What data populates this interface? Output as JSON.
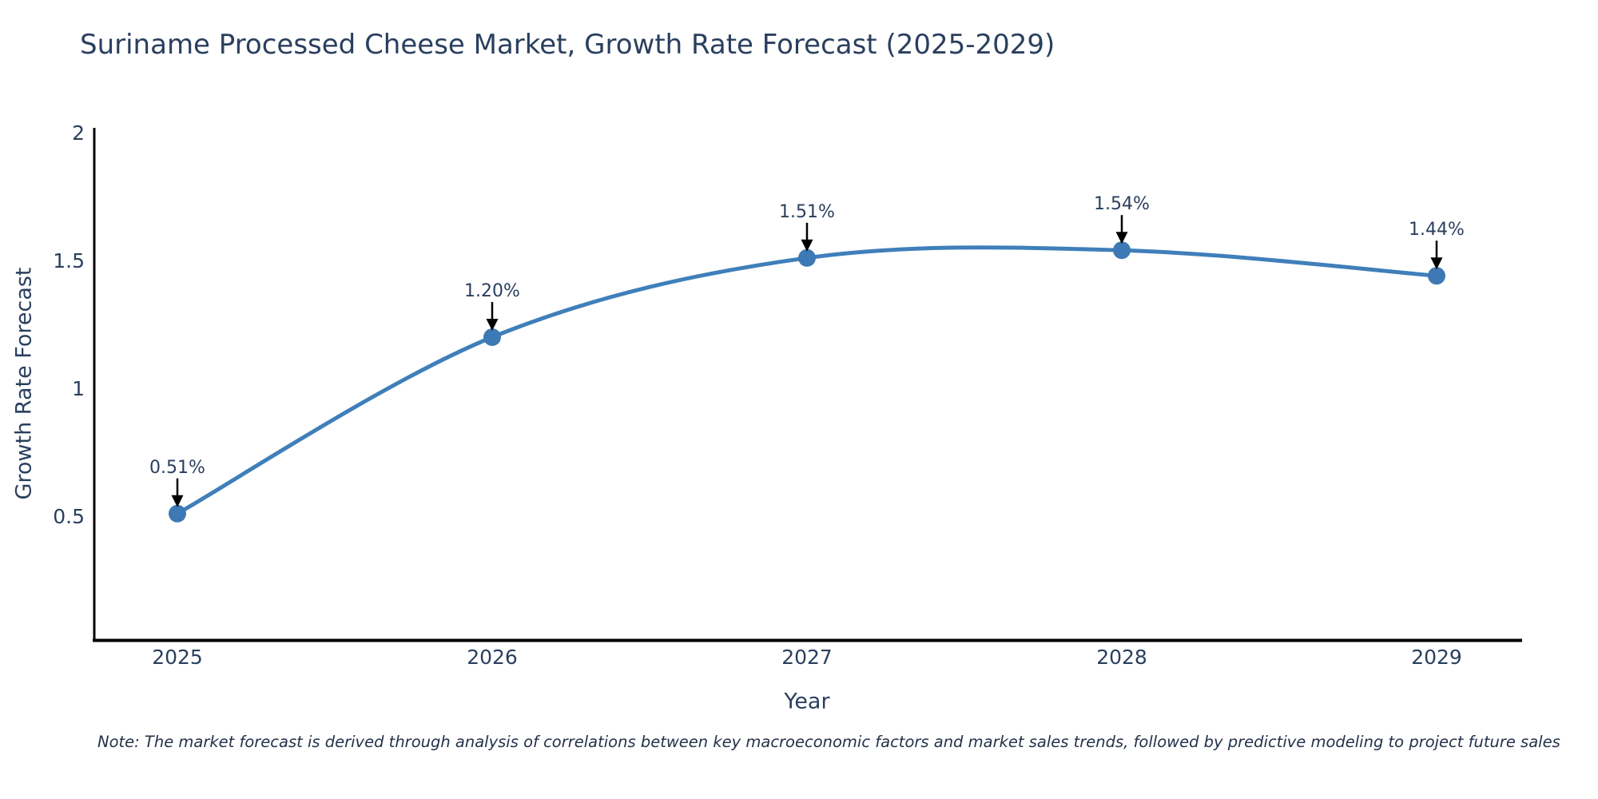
{
  "chart_data": {
    "type": "line",
    "title": "Suriname Processed Cheese Market, Growth Rate Forecast (2025-2029)",
    "xlabel": "Year",
    "ylabel": "Growth Rate Forecast",
    "categories": [
      "2025",
      "2026",
      "2027",
      "2028",
      "2029"
    ],
    "series": [
      {
        "name": "Growth Rate Forecast",
        "values": [
          0.51,
          1.2,
          1.51,
          1.54,
          1.44
        ],
        "point_labels": [
          "0.51%",
          "1.20%",
          "1.51%",
          "1.54%",
          "1.44%"
        ]
      }
    ],
    "ylim": [
      0,
      2
    ],
    "yticks": [
      0.5,
      1,
      1.5,
      2
    ],
    "ytick_labels": [
      "0.5",
      "1",
      "1.5",
      "2"
    ],
    "grid": false,
    "legend_position": "none",
    "line_color": "#3f7fba",
    "marker_color": "#3d79b4",
    "axis_color": "#000000",
    "tick_color": "#2a3f5f",
    "annotation_text_color": "#2a3f5f",
    "arrow_color": "#000000",
    "background_color": "#ffffff"
  },
  "note": {
    "text": "Note: The market forecast is derived through analysis of correlations between key macroeconomic factors and market sales trends, followed by predictive modeling to project future sales"
  }
}
